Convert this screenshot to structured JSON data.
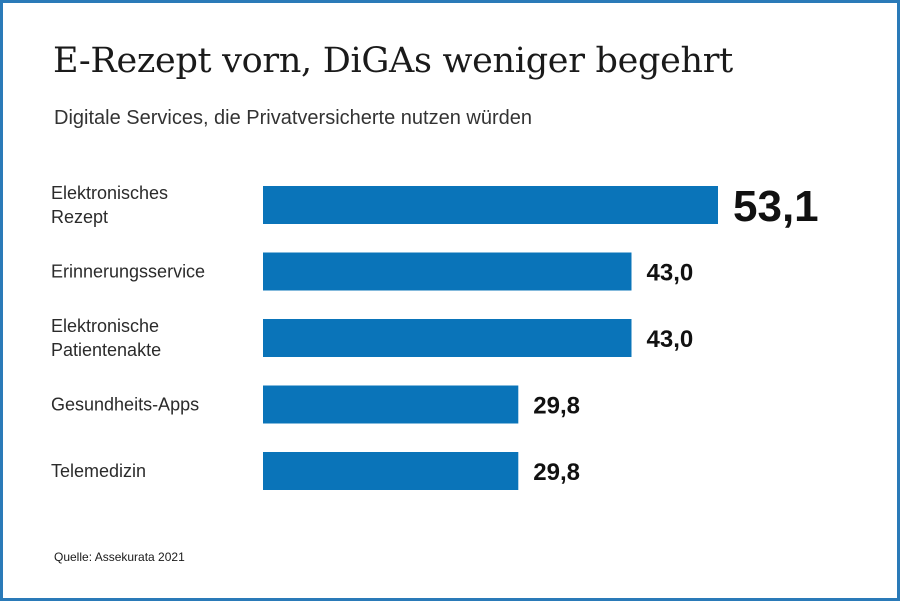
{
  "title": "E-Rezept vorn, DiGAs weniger begehrt",
  "subtitle": "Digitale Services, die Privatversicherte nutzen würden",
  "source": "Quelle: Assekurata 2021",
  "colors": {
    "bar": "#0a74b9",
    "border": "#2a7ab8",
    "label": "#2b2b2b",
    "value": "#111111"
  },
  "chart_data": {
    "type": "bar",
    "orientation": "horizontal",
    "categories": [
      "Elektronisches Rezept",
      "Erinnerungsservice",
      "Elektronische Patientenakte",
      "Gesundheits-Apps",
      "Telemedizin"
    ],
    "category_lines": [
      [
        "Elektronisches",
        "Rezept"
      ],
      [
        "Erinnerungsservice"
      ],
      [
        "Elektronische",
        "Patientenakte"
      ],
      [
        "Gesundheits-Apps"
      ],
      [
        "Telemedizin"
      ]
    ],
    "values": [
      53.1,
      43.0,
      43.0,
      29.8,
      29.8
    ],
    "value_labels": [
      "53,1",
      "43,0",
      "43,0",
      "29,8",
      "29,8"
    ],
    "title": "E-Rezept vorn, DiGAs weniger begehrt",
    "xlabel": "",
    "ylabel": "",
    "xlim": [
      0,
      53.1
    ],
    "grid": false,
    "legend": "none"
  }
}
